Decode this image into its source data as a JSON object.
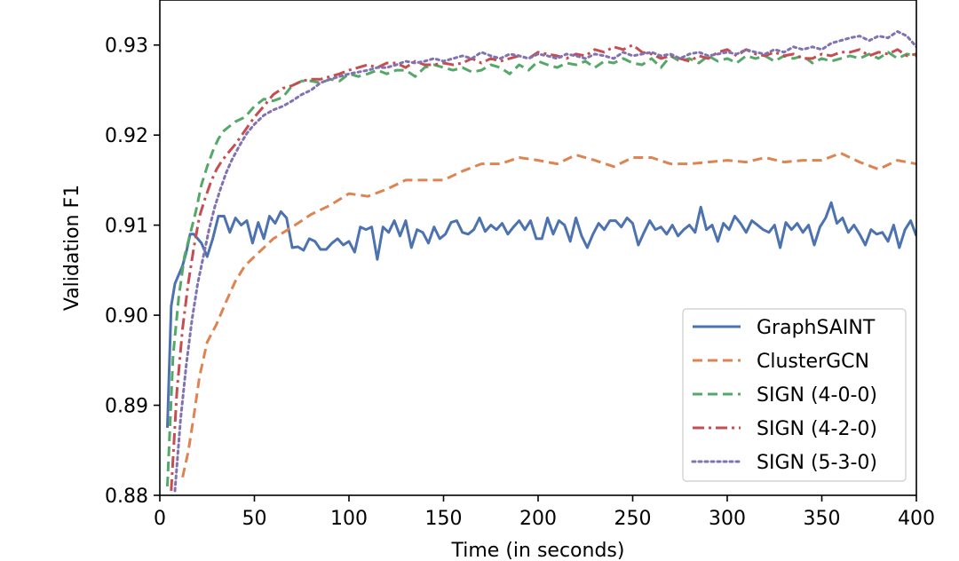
{
  "chart_data": {
    "type": "line",
    "title": "",
    "xlabel": "Time (in seconds)",
    "ylabel": "Validation F1",
    "xlim": [
      0,
      400
    ],
    "ylim": [
      0.88,
      0.935
    ],
    "xticks": [
      0,
      50,
      100,
      150,
      200,
      250,
      300,
      350,
      400
    ],
    "yticks": [
      0.88,
      0.89,
      0.9,
      0.91,
      0.92,
      0.93
    ],
    "ytick_labels": [
      "0.88",
      "0.89",
      "0.90",
      "0.91",
      "0.92",
      "0.93"
    ],
    "grid": false,
    "legend_position": "lower-right",
    "series": [
      {
        "name": "GraphSAINT",
        "color": "#4c72b0",
        "dash": "solid",
        "x": [
          4,
          6,
          8,
          10,
          12,
          14,
          16,
          18,
          20,
          22,
          25,
          28,
          31,
          34,
          37,
          40,
          43,
          46,
          49,
          52,
          55,
          58,
          61,
          64,
          67,
          70,
          73,
          76,
          79,
          82,
          85,
          88,
          91,
          94,
          97,
          100,
          103,
          106,
          109,
          112,
          115,
          118,
          121,
          124,
          127,
          130,
          133,
          136,
          139,
          142,
          145,
          148,
          151,
          154,
          157,
          160,
          163,
          166,
          169,
          172,
          175,
          178,
          181,
          184,
          187,
          190,
          193,
          196,
          199,
          202,
          205,
          208,
          211,
          214,
          217,
          220,
          223,
          226,
          229,
          232,
          235,
          238,
          241,
          244,
          247,
          250,
          253,
          256,
          259,
          262,
          265,
          268,
          271,
          274,
          277,
          280,
          283,
          286,
          289,
          292,
          295,
          298,
          301,
          304,
          307,
          310,
          313,
          316,
          319,
          322,
          325,
          328,
          331,
          334,
          337,
          340,
          343,
          346,
          349,
          352,
          355,
          358,
          361,
          364,
          367,
          370,
          373,
          376,
          379,
          382,
          385,
          388,
          391,
          394,
          397,
          400
        ],
        "y": [
          0.8875,
          0.901,
          0.9035,
          0.9045,
          0.9055,
          0.907,
          0.909,
          0.909,
          0.9085,
          0.908,
          0.9065,
          0.9085,
          0.911,
          0.911,
          0.9092,
          0.9108,
          0.91,
          0.9105,
          0.908,
          0.9103,
          0.9085,
          0.911,
          0.9102,
          0.9115,
          0.9108,
          0.9075,
          0.9076,
          0.9072,
          0.9085,
          0.9082,
          0.9073,
          0.9073,
          0.908,
          0.9085,
          0.9078,
          0.9082,
          0.907,
          0.9098,
          0.9095,
          0.9098,
          0.9062,
          0.9098,
          0.9092,
          0.9105,
          0.9088,
          0.9105,
          0.9075,
          0.9095,
          0.9092,
          0.908,
          0.9098,
          0.9085,
          0.909,
          0.9103,
          0.9105,
          0.9092,
          0.909,
          0.9095,
          0.9108,
          0.9093,
          0.91,
          0.9095,
          0.9102,
          0.909,
          0.9098,
          0.9105,
          0.9095,
          0.9105,
          0.9085,
          0.9085,
          0.9108,
          0.909,
          0.9105,
          0.91,
          0.9082,
          0.9108,
          0.9088,
          0.9075,
          0.909,
          0.9102,
          0.9095,
          0.9105,
          0.9105,
          0.9098,
          0.9108,
          0.9102,
          0.9078,
          0.9092,
          0.9105,
          0.9095,
          0.9098,
          0.909,
          0.91,
          0.9088,
          0.9095,
          0.91,
          0.9092,
          0.912,
          0.9095,
          0.91,
          0.9082,
          0.9102,
          0.9095,
          0.911,
          0.9102,
          0.9092,
          0.9105,
          0.91,
          0.9095,
          0.9092,
          0.91,
          0.9075,
          0.9103,
          0.9095,
          0.9102,
          0.9092,
          0.91,
          0.9078,
          0.9098,
          0.9108,
          0.9125,
          0.9102,
          0.9108,
          0.9092,
          0.91,
          0.909,
          0.9078,
          0.9095,
          0.909,
          0.9092,
          0.9082,
          0.91,
          0.9075,
          0.9095,
          0.9105,
          0.9088
        ]
      },
      {
        "name": "ClusterGCN",
        "color": "#dd8452",
        "dash": "dashed",
        "x": [
          12,
          15,
          18,
          21,
          25,
          30,
          35,
          40,
          45,
          50,
          60,
          70,
          80,
          90,
          100,
          110,
          120,
          130,
          140,
          150,
          160,
          170,
          180,
          190,
          200,
          210,
          220,
          230,
          240,
          250,
          260,
          270,
          280,
          290,
          300,
          310,
          320,
          330,
          340,
          350,
          360,
          370,
          380,
          390,
          400
        ],
        "y": [
          0.882,
          0.8848,
          0.8888,
          0.8932,
          0.897,
          0.899,
          0.9015,
          0.9038,
          0.9055,
          0.9065,
          0.9085,
          0.9098,
          0.9112,
          0.9122,
          0.9135,
          0.9132,
          0.914,
          0.915,
          0.915,
          0.915,
          0.916,
          0.9168,
          0.9168,
          0.9175,
          0.9172,
          0.9168,
          0.9178,
          0.9172,
          0.9165,
          0.9175,
          0.9175,
          0.9168,
          0.9168,
          0.917,
          0.9172,
          0.917,
          0.9175,
          0.917,
          0.9172,
          0.9172,
          0.918,
          0.917,
          0.9162,
          0.9172,
          0.9168
        ]
      },
      {
        "name": "SIGN (4-0-0)",
        "color": "#55a868",
        "dash": "dashed",
        "x": [
          4,
          7,
          10,
          13,
          16,
          19,
          22,
          25,
          28,
          31,
          34,
          37,
          40,
          45,
          50,
          55,
          60,
          65,
          70,
          75,
          80,
          85,
          90,
          95,
          100,
          105,
          110,
          115,
          120,
          125,
          130,
          135,
          140,
          145,
          150,
          155,
          160,
          165,
          170,
          175,
          180,
          185,
          190,
          195,
          200,
          205,
          210,
          215,
          220,
          225,
          230,
          235,
          240,
          245,
          250,
          255,
          260,
          265,
          270,
          275,
          280,
          285,
          290,
          295,
          300,
          305,
          310,
          315,
          320,
          325,
          330,
          335,
          340,
          345,
          350,
          355,
          360,
          365,
          370,
          375,
          380,
          385,
          390,
          395,
          400
        ],
        "y": [
          0.881,
          0.8955,
          0.902,
          0.9065,
          0.909,
          0.9115,
          0.9145,
          0.9165,
          0.9182,
          0.9196,
          0.9205,
          0.921,
          0.9215,
          0.922,
          0.9232,
          0.924,
          0.9238,
          0.9242,
          0.9255,
          0.926,
          0.926,
          0.9258,
          0.9262,
          0.926,
          0.9268,
          0.9265,
          0.9268,
          0.9272,
          0.9268,
          0.9272,
          0.9272,
          0.9265,
          0.9275,
          0.9278,
          0.9275,
          0.9272,
          0.9275,
          0.927,
          0.9272,
          0.9278,
          0.9275,
          0.9268,
          0.9278,
          0.9272,
          0.9282,
          0.9278,
          0.9275,
          0.928,
          0.9278,
          0.9282,
          0.9275,
          0.9282,
          0.928,
          0.9285,
          0.928,
          0.9278,
          0.9285,
          0.9275,
          0.9288,
          0.9282,
          0.9285,
          0.928,
          0.9288,
          0.9282,
          0.9285,
          0.928,
          0.9288,
          0.9285,
          0.9288,
          0.9282,
          0.9288,
          0.9285,
          0.9288,
          0.928,
          0.9285,
          0.9282,
          0.9285,
          0.9288,
          0.9285,
          0.929,
          0.9285,
          0.9292,
          0.9285,
          0.929,
          0.9288
        ]
      },
      {
        "name": "SIGN (4-2-0)",
        "color": "#c44e52",
        "dash": "dashdot",
        "x": [
          6,
          9,
          12,
          15,
          18,
          21,
          24,
          27,
          30,
          33,
          36,
          40,
          45,
          50,
          55,
          60,
          65,
          70,
          75,
          80,
          85,
          90,
          95,
          100,
          105,
          110,
          115,
          120,
          125,
          130,
          135,
          140,
          145,
          150,
          155,
          160,
          165,
          170,
          175,
          180,
          185,
          190,
          195,
          200,
          205,
          210,
          215,
          220,
          225,
          230,
          235,
          240,
          245,
          250,
          255,
          260,
          265,
          270,
          275,
          280,
          285,
          290,
          295,
          300,
          305,
          310,
          315,
          320,
          325,
          330,
          335,
          340,
          345,
          350,
          355,
          360,
          365,
          370,
          375,
          380,
          385,
          390,
          395,
          400
        ],
        "y": [
          0.8805,
          0.8915,
          0.8985,
          0.9035,
          0.9075,
          0.911,
          0.913,
          0.9148,
          0.9162,
          0.9172,
          0.918,
          0.919,
          0.9205,
          0.922,
          0.9232,
          0.9245,
          0.9252,
          0.9255,
          0.926,
          0.9262,
          0.9262,
          0.9265,
          0.9268,
          0.9272,
          0.9275,
          0.9278,
          0.9275,
          0.928,
          0.928,
          0.9275,
          0.9282,
          0.9278,
          0.9278,
          0.928,
          0.9278,
          0.928,
          0.9285,
          0.928,
          0.9285,
          0.9282,
          0.9285,
          0.9288,
          0.9285,
          0.9292,
          0.929,
          0.9288,
          0.9285,
          0.929,
          0.9288,
          0.9295,
          0.9292,
          0.9298,
          0.9295,
          0.93,
          0.9292,
          0.929,
          0.9285,
          0.9288,
          0.9285,
          0.9282,
          0.9288,
          0.9285,
          0.9292,
          0.9295,
          0.9288,
          0.9295,
          0.929,
          0.9288,
          0.9292,
          0.9288,
          0.929,
          0.9285,
          0.9285,
          0.929,
          0.9288,
          0.9292,
          0.9292,
          0.9295,
          0.9288,
          0.9292,
          0.929,
          0.9295,
          0.9288,
          0.929
        ]
      },
      {
        "name": "SIGN (5-3-0)",
        "color": "#8172b2",
        "dash": "dotted",
        "x": [
          8,
          11,
          14,
          17,
          20,
          23,
          26,
          29,
          32,
          35,
          38,
          42,
          46,
          50,
          55,
          60,
          65,
          70,
          75,
          80,
          85,
          90,
          95,
          100,
          105,
          110,
          115,
          120,
          125,
          130,
          135,
          140,
          145,
          150,
          155,
          160,
          165,
          170,
          175,
          180,
          185,
          190,
          195,
          200,
          205,
          210,
          215,
          220,
          225,
          230,
          235,
          240,
          245,
          250,
          255,
          260,
          265,
          270,
          275,
          280,
          285,
          290,
          295,
          300,
          305,
          310,
          315,
          320,
          325,
          330,
          335,
          340,
          345,
          350,
          355,
          360,
          365,
          370,
          375,
          380,
          385,
          390,
          395,
          400
        ],
        "y": [
          0.8805,
          0.8885,
          0.8945,
          0.8995,
          0.9035,
          0.9065,
          0.9095,
          0.912,
          0.914,
          0.9158,
          0.9172,
          0.9188,
          0.9202,
          0.9212,
          0.9222,
          0.9228,
          0.9232,
          0.9238,
          0.9245,
          0.925,
          0.9258,
          0.9262,
          0.9265,
          0.9268,
          0.927,
          0.9272,
          0.9275,
          0.9275,
          0.9278,
          0.9282,
          0.928,
          0.9282,
          0.9285,
          0.9282,
          0.9285,
          0.9288,
          0.9285,
          0.9292,
          0.9288,
          0.9285,
          0.929,
          0.9288,
          0.9285,
          0.929,
          0.9288,
          0.9285,
          0.929,
          0.9288,
          0.9285,
          0.929,
          0.9288,
          0.9285,
          0.9292,
          0.9288,
          0.929,
          0.9292,
          0.9288,
          0.929,
          0.9285,
          0.929,
          0.9292,
          0.9288,
          0.929,
          0.9292,
          0.929,
          0.9295,
          0.9292,
          0.929,
          0.9295,
          0.9292,
          0.9298,
          0.9295,
          0.9298,
          0.9295,
          0.9302,
          0.9305,
          0.9308,
          0.931,
          0.9305,
          0.931,
          0.9308,
          0.9315,
          0.931,
          0.9298
        ]
      }
    ]
  }
}
